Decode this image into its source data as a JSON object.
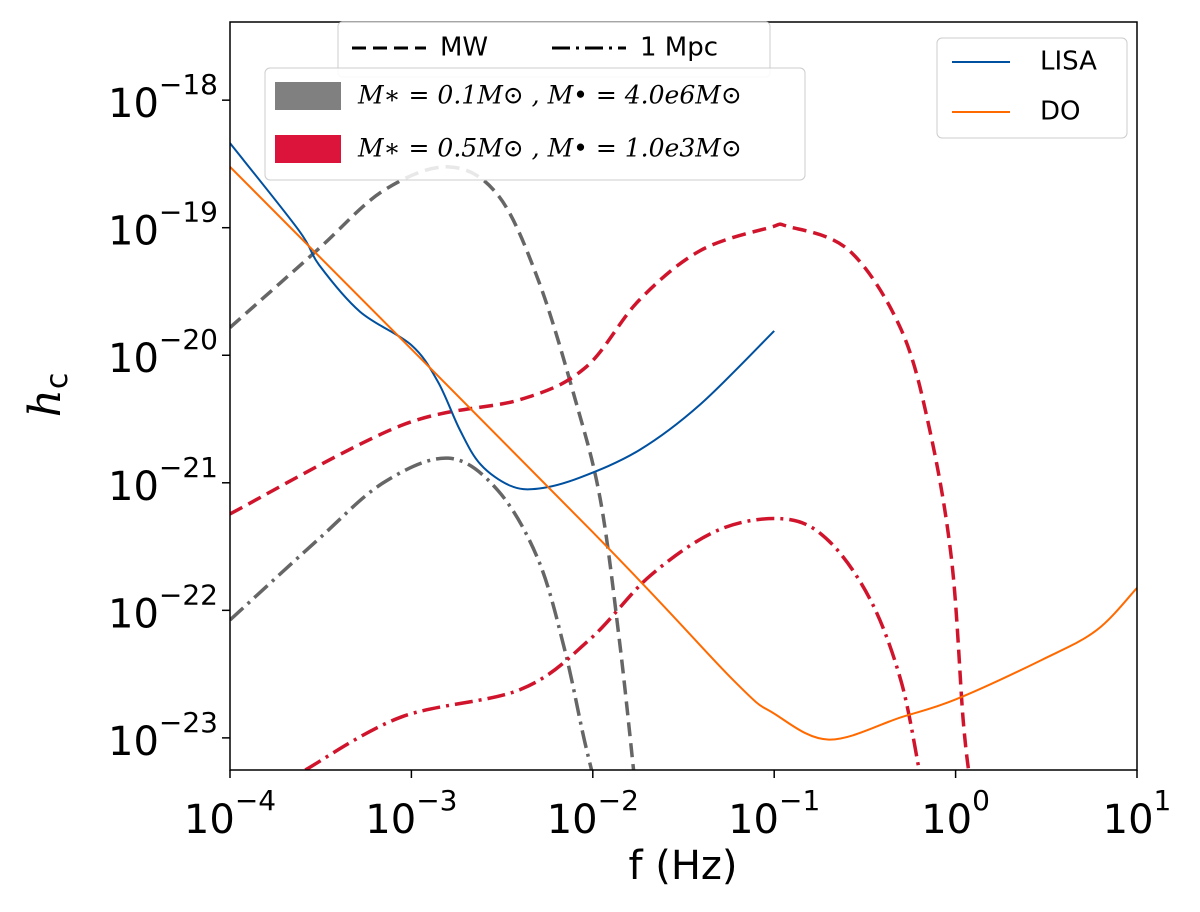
{
  "chart_data": {
    "type": "line",
    "xlabel": "f (Hz)",
    "ylabel": {
      "text": "h",
      "subscript": "c"
    },
    "xscale": "log",
    "yscale": "log",
    "xlim": [
      0.0001,
      10
    ],
    "ylim": [
      5.6e-24,
      4.1e-18
    ],
    "xticks": [
      {
        "value": 0.0001,
        "label": "10−4"
      },
      {
        "value": 0.001,
        "label": "10−3"
      },
      {
        "value": 0.01,
        "label": "10−2"
      },
      {
        "value": 0.1,
        "label": "10−1"
      },
      {
        "value": 1,
        "label": "100"
      },
      {
        "value": 10,
        "label": "101"
      }
    ],
    "yticks": [
      {
        "value": 1e-23,
        "label": "10−23"
      },
      {
        "value": 1e-22,
        "label": "10−22"
      },
      {
        "value": 1e-21,
        "label": "10−21"
      },
      {
        "value": 1e-20,
        "label": "10−20"
      },
      {
        "value": 1e-19,
        "label": "10−19"
      },
      {
        "value": 1e-18,
        "label": "10−18"
      }
    ],
    "legend": "upper right",
    "series": [
      {
        "name": "LISA",
        "color": "#0050a0",
        "x": [
          0.0001,
          0.00024,
          0.00031,
          0.00052,
          0.001,
          0.0014,
          0.00185,
          0.0024,
          0.0035,
          0.005,
          0.0085,
          0.018,
          0.039,
          0.1
        ],
        "values": [
          4.6e-19,
          9.5e-20,
          5.1e-20,
          2.2e-20,
          1.2e-20,
          6.2e-21,
          2.6e-21,
          1.4e-21,
          9.5e-22,
          9e-22,
          1.1e-21,
          1.8e-21,
          4.1e-21,
          1.55e-20
        ]
      },
      {
        "name": "DO",
        "color": "#ff6a00",
        "x": [
          0.0001,
          0.01,
          0.06,
          0.1,
          0.2,
          0.5,
          1,
          3,
          6,
          10
        ],
        "values": [
          3e-19,
          4.1e-22,
          2.8e-23,
          1.55e-23,
          9.7e-24,
          1.45e-23,
          2e-23,
          4.1e-23,
          7e-23,
          1.5e-22
        ]
      }
    ],
    "style_legend": [
      {
        "label": "MW",
        "dash": "dashed"
      },
      {
        "label": "1 Mpc",
        "dash": "dashdot"
      }
    ],
    "models": [
      {
        "label": "M∗ = 0.1M⊙ , M• = 4.0e6M⊙",
        "color": "#808080",
        "line_color": "#666666",
        "curves": [
          {
            "dash": "dashed",
            "x": [
              0.0001,
              0.0003,
              0.0007,
              0.0016,
              0.003,
              0.005,
              0.008,
              0.011,
              0.014,
              0.017
            ],
            "values": [
              1.65e-20,
              6.6e-20,
              1.95e-19,
              3e-19,
              1.8e-19,
              3.9e-20,
              4.5e-21,
              7.4e-22,
              5.9e-23,
              4.7e-24
            ]
          },
          {
            "dash": "dashdot",
            "x": [
              0.0001,
              0.0003,
              0.0007,
              0.0016,
              0.003,
              0.005,
              0.007,
              0.009,
              0.011
            ],
            "values": [
              8.4e-23,
              3.5e-22,
              1e-21,
              1.56e-21,
              8.7e-22,
              2.5e-22,
              4.9e-23,
              9.5e-24,
              3e-24
            ]
          }
        ]
      },
      {
        "label": "M∗ = 0.5M⊙ , M• = 1.0e3M⊙",
        "color": "#dc143c",
        "line_color": "#d0142c",
        "curves": [
          {
            "dash": "dashed",
            "x": [
              0.0001,
              0.00087,
              0.004,
              0.0091,
              0.018,
              0.039,
              0.094,
              0.12,
              0.26,
              0.5,
              0.72,
              0.95,
              1.1,
              1.2
            ],
            "values": [
              5.7e-22,
              2.8e-21,
              4.5e-21,
              8e-21,
              2.7e-20,
              6.6e-20,
              1e-19,
              1.02e-19,
              6.6e-20,
              1.6e-20,
              2.6e-21,
              2.5e-22,
              1.4e-23,
              4.6e-24
            ]
          },
          {
            "dash": "dashdot",
            "x": [
              0.00026,
              0.00087,
              0.004,
              0.0096,
              0.021,
              0.05,
              0.115,
              0.2,
              0.34,
              0.5,
              0.63
            ],
            "values": [
              5.6e-24,
              1.45e-23,
              2.4e-23,
              5.9e-23,
              1.9e-22,
              4.3e-22,
              5.2e-22,
              3.5e-22,
              1.2e-22,
              2.8e-23,
              5.6e-24
            ]
          }
        ]
      }
    ]
  }
}
